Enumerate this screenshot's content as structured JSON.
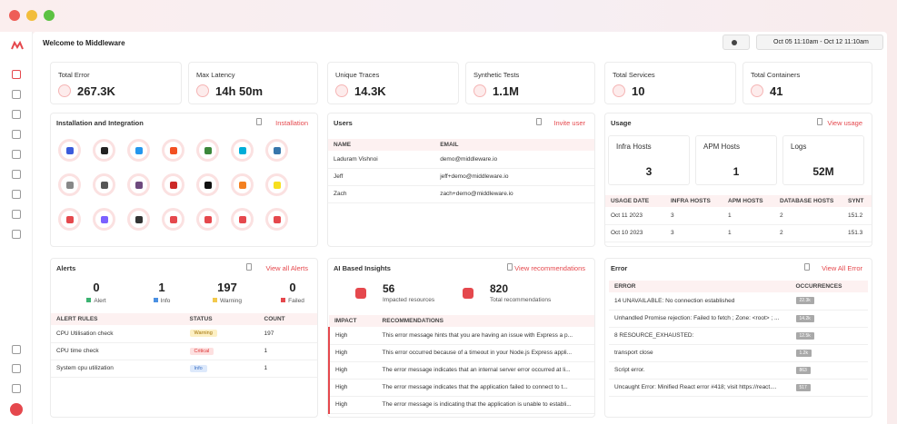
{
  "header": {
    "title": "Welcome to Middleware",
    "date_range": "Oct 05 11:10am - Oct 12 11:10am"
  },
  "stats": [
    {
      "label": "Total Error",
      "value": "267.3K"
    },
    {
      "label": "Max Latency",
      "value": "14h 50m"
    },
    {
      "label": "Unique Traces",
      "value": "14.3K"
    },
    {
      "label": "Synthetic Tests",
      "value": "1.1M"
    },
    {
      "label": "Total Services",
      "value": "10"
    },
    {
      "label": "Total Containers",
      "value": "41"
    }
  ],
  "installation": {
    "title": "Installation and Integration",
    "action": "Installation"
  },
  "users": {
    "title": "Users",
    "action": "Invite user",
    "columns": [
      "NAME",
      "EMAIL"
    ],
    "rows": [
      [
        "Laduram Vishnoi",
        "demo@middleware.io"
      ],
      [
        "Jeff",
        "jeff+demo@middleware.io"
      ],
      [
        "Zach",
        "zach+demo@middleware.io"
      ]
    ]
  },
  "usage": {
    "title": "Usage",
    "action": "View usage",
    "cards": [
      {
        "label": "Infra Hosts",
        "value": "3"
      },
      {
        "label": "APM Hosts",
        "value": "1"
      },
      {
        "label": "Logs",
        "value": "52M"
      }
    ],
    "columns": [
      "USAGE DATE",
      "INFRA HOSTS",
      "APM HOSTS",
      "DATABASE HOSTS",
      "SYNT"
    ],
    "rows": [
      [
        "Oct 11 2023",
        "3",
        "1",
        "2",
        "151.2"
      ],
      [
        "Oct 10 2023",
        "3",
        "1",
        "2",
        "151.3"
      ]
    ]
  },
  "alerts": {
    "title": "Alerts",
    "action": "View all Alerts",
    "counts": [
      {
        "value": "0",
        "label": "Alert"
      },
      {
        "value": "1",
        "label": "Info"
      },
      {
        "value": "197",
        "label": "Warning"
      },
      {
        "value": "0",
        "label": "Failed"
      }
    ],
    "columns": [
      "ALERT RULES",
      "STATUS",
      "COUNT"
    ],
    "rows": [
      [
        "CPU Utilisation check",
        "Warning",
        "197"
      ],
      [
        "CPU time check",
        "Critical",
        "1"
      ],
      [
        "System cpu utilization",
        "Info",
        "1"
      ]
    ]
  },
  "insights": {
    "title": "AI Based Insights",
    "action": "View recommendations",
    "summary": [
      {
        "value": "56",
        "label": "Impacted resources"
      },
      {
        "value": "820",
        "label": "Total recommendations"
      }
    ],
    "columns": [
      "IMPACT",
      "RECOMMENDATIONS"
    ],
    "rows": [
      [
        "High",
        "This error message hints that you are having an issue with Express a p..."
      ],
      [
        "High",
        "This error occurred because of a timeout in your Node.js Express appli..."
      ],
      [
        "High",
        "The error message indicates that an internal server error occurred at li..."
      ],
      [
        "High",
        "The error message indicates that the application failed to connect to t..."
      ],
      [
        "High",
        "The error message is indicating that the application is unable to establi..."
      ]
    ]
  },
  "errors": {
    "title": "Error",
    "action": "View All Error",
    "columns": [
      "ERROR",
      "OCCURRENCES"
    ],
    "rows": [
      [
        "14 UNAVAILABLE: No connection established",
        "22.3k"
      ],
      [
        "Unhandled Promise rejection: Failed to fetch ; Zone: <root> ; ...",
        "14.2k"
      ],
      [
        "8 RESOURCE_EXHAUSTED:",
        "12.5k"
      ],
      [
        "transport close",
        "1.2k"
      ],
      [
        "Script error.",
        "863"
      ],
      [
        "Uncaught Error: Minified React error #418; visit https://react....",
        "517"
      ]
    ]
  }
}
